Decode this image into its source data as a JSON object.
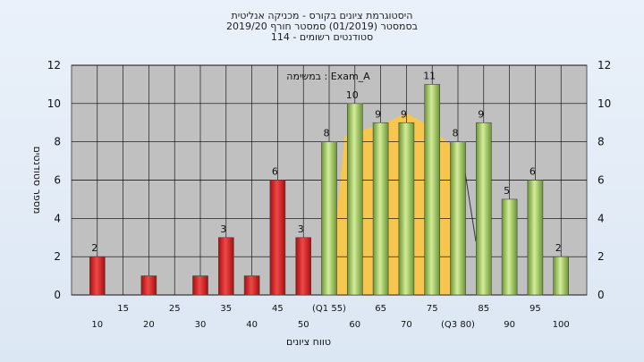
{
  "chart_data": {
    "type": "bar",
    "title_lines": [
      "היסטוגרמת ציונים בקורס - מכניקה אנליטית",
      "בסמסטר  (01/2019)  סמסטר חורף 2019/20",
      "סטודנטים רשומים - 114"
    ],
    "xlabel": "טווח ציונים",
    "ylabel": "מספר סטודנטים",
    "ylim": [
      0,
      12
    ],
    "yticks": [
      0,
      2,
      4,
      6,
      8,
      10,
      12
    ],
    "legend_label": "במשימה : Exam_A",
    "x": [
      10,
      20,
      30,
      35,
      40,
      45,
      50,
      55,
      60,
      65,
      70,
      75,
      80,
      85,
      90,
      95,
      100
    ],
    "values": [
      2,
      1,
      1,
      3,
      1,
      6,
      3,
      8,
      10,
      9,
      9,
      11,
      8,
      9,
      5,
      6,
      2
    ],
    "data_labels": [
      "2",
      "",
      "",
      "3",
      "",
      "6",
      "3",
      "8",
      "10",
      "9",
      "9",
      "11",
      "8",
      "9",
      "5",
      "6",
      "2"
    ],
    "bar_colors": [
      "red",
      "red",
      "red",
      "red",
      "red",
      "red",
      "red",
      "green",
      "green",
      "green",
      "green",
      "green",
      "green",
      "green",
      "green",
      "green",
      "green"
    ],
    "xtick_labels_row1": [
      {
        "x": 15,
        "label": "15"
      },
      {
        "x": 25,
        "label": "25"
      },
      {
        "x": 35,
        "label": "35"
      },
      {
        "x": 45,
        "label": "45"
      },
      {
        "x": 55,
        "label": "(Q1 55)"
      },
      {
        "x": 65,
        "label": "65"
      },
      {
        "x": 75,
        "label": "75"
      },
      {
        "x": 85,
        "label": "85"
      },
      {
        "x": 95,
        "label": "95"
      }
    ],
    "xtick_labels_row2": [
      {
        "x": 10,
        "label": "10"
      },
      {
        "x": 20,
        "label": "20"
      },
      {
        "x": 30,
        "label": "30"
      },
      {
        "x": 40,
        "label": "40"
      },
      {
        "x": 50,
        "label": "50"
      },
      {
        "x": 60,
        "label": "60"
      },
      {
        "x": 70,
        "label": "70"
      },
      {
        "x": 80,
        "label": "(Q3 80)"
      },
      {
        "x": 90,
        "label": "90"
      },
      {
        "x": 100,
        "label": "100"
      }
    ],
    "quartile_band": {
      "q1": 55,
      "q3": 80,
      "median": 70,
      "peak": 9.5
    },
    "colors": {
      "plot_bg": "#c0c0c0",
      "grid": "#000000",
      "red_dark": "#a50f0f",
      "red_light": "#f04848",
      "green_dark": "#6b9632",
      "green_light": "#d4ec9a",
      "band": "#ffc73a"
    }
  }
}
